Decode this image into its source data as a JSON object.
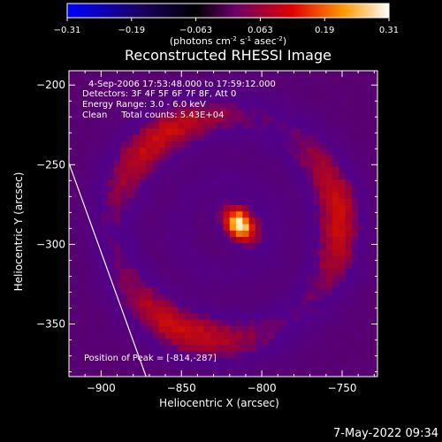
{
  "chart_data": {
    "type": "heatmap",
    "title": "Reconstructed RHESSI Image",
    "colorbar": {
      "ticks": [
        "-0.31",
        "-0.19",
        "-0.063",
        "0.063",
        "0.19",
        "0.31"
      ],
      "range": [
        -0.31,
        0.31
      ],
      "unit_prefix": "(photons cm",
      "unit_exp1": "-2",
      "unit_mid": " s",
      "unit_exp2": "-1",
      "unit_mid2": " asec",
      "unit_exp3": "-2",
      "unit_suffix": ")",
      "colors": [
        "#0000ff",
        "#000000",
        "#7a007a",
        "#ff0000",
        "#ff8800",
        "#ffffff"
      ]
    },
    "info_lines": [
      "4-Sep-2006 17:53:48.000 to 17:59:12.000",
      "Detectors: 3F 4F 5F 6F 7F 8F, Att 0",
      "Energy Range: 3.0 - 6.0 keV",
      "Clean     Total counts: 5.43E+04"
    ],
    "peak_label": "Position of Peak = [-814,-287]",
    "peak": {
      "x": -814,
      "y": -287
    },
    "xlabel": "Heliocentric X (arcsec)",
    "ylabel": "Heliocentric Y (arcsec)",
    "xlim": [
      -920,
      -728
    ],
    "ylim": [
      -383,
      -191
    ],
    "xticks": [
      {
        "v": -900,
        "label": "−900"
      },
      {
        "v": -850,
        "label": "−850"
      },
      {
        "v": -800,
        "label": "−800"
      },
      {
        "v": -750,
        "label": "−750"
      }
    ],
    "yticks": [
      {
        "v": -200,
        "label": "−200"
      },
      {
        "v": -250,
        "label": "−250"
      },
      {
        "v": -300,
        "label": "−300"
      },
      {
        "v": -350,
        "label": "−350"
      }
    ],
    "limb_line": [
      [
        -920,
        -249
      ],
      [
        -872,
        -383
      ]
    ],
    "ring_center": {
      "x": -822,
      "y": -289
    },
    "ring_radius": 70
  },
  "footer_timestamp": "7-May-2022 09:34"
}
